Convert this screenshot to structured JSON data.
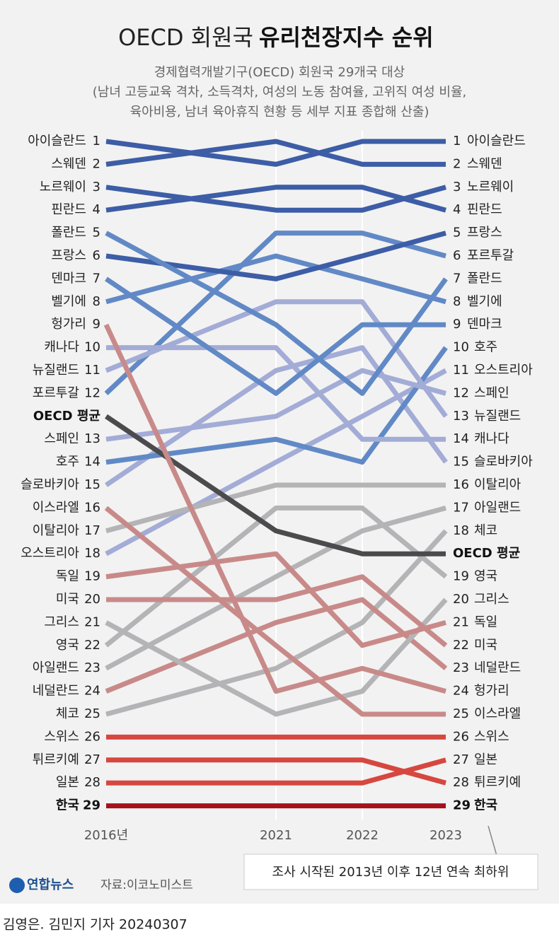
{
  "chart_data": {
    "type": "bump",
    "title": "OECD 회원국",
    "title_emphasis": "유리천장지수 순위",
    "subtitle": [
      "경제협력개발기구(OECD) 회원국 29개국 대상",
      "(남녀 고등교육 격차, 소득격차, 여성의 노동 참여율, 고위직 여성 비율,",
      "육아비용, 남녀 육아휴직 현황 등 세부 지표 종합해 산출)"
    ],
    "categories": [
      "2016년",
      "2021",
      "2022",
      "2023"
    ],
    "series": [
      {
        "name": "아이슬란드",
        "color": "#3d5da6",
        "values": [
          1,
          2,
          1,
          1
        ]
      },
      {
        "name": "스웨덴",
        "color": "#3d5da6",
        "values": [
          2,
          1,
          2,
          2
        ]
      },
      {
        "name": "노르웨이",
        "color": "#3d5da6",
        "values": [
          3,
          4,
          4,
          3
        ]
      },
      {
        "name": "핀란드",
        "color": "#3d5da6",
        "values": [
          4,
          3,
          3,
          4
        ]
      },
      {
        "name": "폴란드",
        "color": "#6189c6",
        "values": [
          5,
          9,
          12,
          7
        ]
      },
      {
        "name": "프랑스",
        "color": "#3d5da6",
        "values": [
          6,
          7,
          6,
          5
        ]
      },
      {
        "name": "덴마크",
        "color": "#6189c6",
        "values": [
          7,
          12,
          9,
          9
        ]
      },
      {
        "name": "벨기에",
        "color": "#6189c6",
        "values": [
          8,
          6,
          7,
          8
        ]
      },
      {
        "name": "헝가리",
        "color": "#c88a89",
        "values": [
          9,
          24,
          23,
          24
        ]
      },
      {
        "name": "캐나다",
        "color": "#a3acd6",
        "values": [
          10,
          10,
          14,
          14
        ]
      },
      {
        "name": "뉴질랜드",
        "color": "#a3acd6",
        "values": [
          11,
          8,
          8,
          13
        ]
      },
      {
        "name": "포르투갈",
        "color": "#6189c6",
        "values": [
          12,
          5,
          5,
          6
        ]
      },
      {
        "name": "OECD 평균",
        "color": "#4b4b4d",
        "values": [
          12.5,
          17.5,
          18.5,
          18.5
        ],
        "emphasis": true
      },
      {
        "name": "스페인",
        "color": "#a3acd6",
        "values": [
          13,
          13,
          11,
          12
        ]
      },
      {
        "name": "호주",
        "color": "#6189c6",
        "values": [
          14,
          14,
          15,
          10
        ]
      },
      {
        "name": "슬로바키아",
        "color": "#a3acd6",
        "values": [
          15,
          11,
          10,
          15
        ]
      },
      {
        "name": "이스라엘",
        "color": "#c88a89",
        "values": [
          16,
          22,
          25,
          25
        ]
      },
      {
        "name": "이탈리아",
        "color": "#b4b4b7",
        "values": [
          17,
          16,
          16,
          16
        ]
      },
      {
        "name": "오스트리아",
        "color": "#a3acd6",
        "values": [
          18,
          15,
          13,
          11
        ]
      },
      {
        "name": "독일",
        "color": "#c88a89",
        "values": [
          19,
          18,
          22,
          21
        ]
      },
      {
        "name": "미국",
        "color": "#c88a89",
        "values": [
          20,
          20,
          19,
          22
        ]
      },
      {
        "name": "그리스",
        "color": "#b4b4b7",
        "values": [
          21,
          25,
          24,
          20
        ]
      },
      {
        "name": "영국",
        "color": "#b4b4b7",
        "values": [
          22,
          17,
          17,
          19
        ]
      },
      {
        "name": "아일랜드",
        "color": "#b4b4b7",
        "values": [
          23,
          19,
          18,
          17
        ]
      },
      {
        "name": "네덜란드",
        "color": "#c88a89",
        "values": [
          24,
          21,
          20,
          23
        ]
      },
      {
        "name": "체코",
        "color": "#b4b4b7",
        "values": [
          25,
          23,
          21,
          18
        ]
      },
      {
        "name": "스위스",
        "color": "#d6473f",
        "values": [
          26,
          26,
          26,
          26
        ]
      },
      {
        "name": "튀르키예",
        "color": "#d6473f",
        "values": [
          27,
          27,
          27,
          28
        ]
      },
      {
        "name": "일본",
        "color": "#d6473f",
        "values": [
          28,
          28,
          28,
          27
        ]
      },
      {
        "name": "한국",
        "color": "#a4121b",
        "values": [
          29,
          29,
          29,
          29
        ],
        "emphasis": true
      }
    ]
  },
  "note": "조사 시작된 2013년 이후 12년 연속 최하위",
  "logo": "연합뉴스",
  "source": "자료:이코노미스트",
  "credit": "김영은. 김민지 기자  20240307"
}
